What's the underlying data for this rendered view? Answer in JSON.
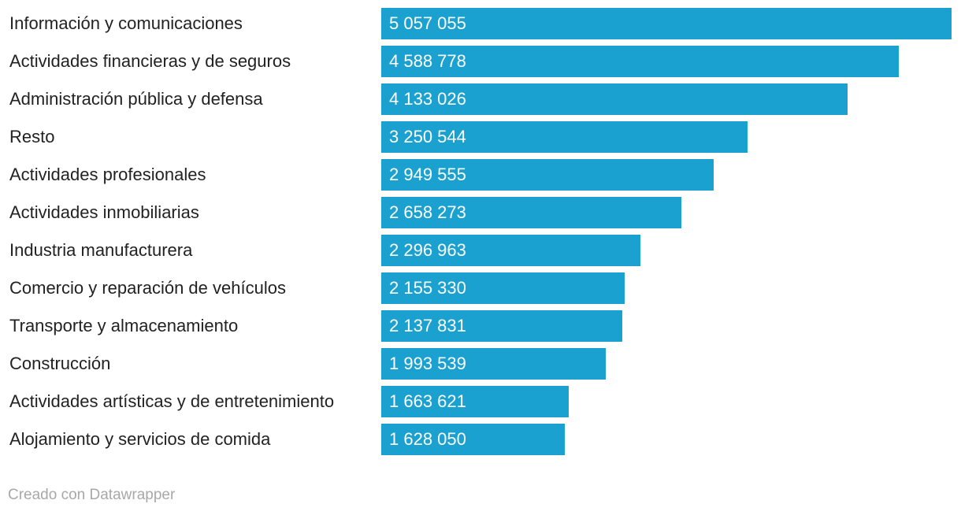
{
  "chart_data": {
    "type": "bar",
    "orientation": "horizontal",
    "title": "",
    "xlabel": "",
    "ylabel": "",
    "categories": [
      "Información y comunicaciones",
      "Actividades financieras y de seguros",
      "Administración pública y defensa",
      "Resto",
      "Actividades profesionales",
      "Actividades inmobiliarias",
      "Industria manufacturera",
      "Comercio y reparación de vehículos",
      "Transporte y almacenamiento",
      "Construcción",
      "Actividades artísticas y de entretenimiento",
      "Alojamiento y servicios de comida"
    ],
    "values": [
      5057055,
      4588778,
      4133026,
      3250544,
      2949555,
      2658273,
      2296963,
      2155330,
      2137831,
      1993539,
      1663621,
      1628050
    ],
    "value_labels": [
      "5 057 055",
      "4 588 778",
      "4 133 026",
      "3 250 544",
      "2 949 555",
      "2 658 273",
      "2 296 963",
      "2 155 330",
      "2 137 831",
      "1 993 539",
      "1 663 621",
      "1 628 050"
    ],
    "xlim": [
      0,
      5057055
    ],
    "bar_color": "#1aa1cf"
  },
  "footer": {
    "credit": "Creado con Datawrapper"
  }
}
